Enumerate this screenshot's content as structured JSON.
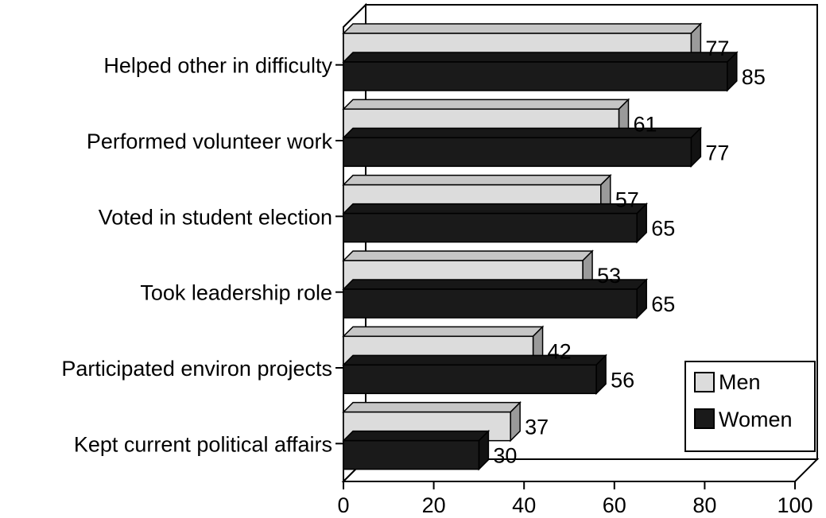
{
  "chart_data": {
    "type": "bar",
    "orientation": "horizontal",
    "categories": [
      "Helped other in difficulty",
      "Performed volunteer work",
      "Voted in student election",
      "Took leadership role",
      "Participated environ projects",
      "Kept current political affairs"
    ],
    "series": [
      {
        "name": "Men",
        "values": [
          77,
          61,
          57,
          53,
          42,
          37
        ],
        "color": "#dcdcdc"
      },
      {
        "name": "Women",
        "values": [
          85,
          77,
          65,
          65,
          56,
          30
        ],
        "color": "#1a1a1a"
      }
    ],
    "xlim": [
      0,
      100
    ],
    "xticks": [
      "0",
      "20",
      "40",
      "60",
      "80",
      "100"
    ],
    "legend": {
      "placement": "bottom-right",
      "entries": [
        "Men",
        "Women"
      ]
    },
    "style": "3d-perspective",
    "grid": false
  }
}
